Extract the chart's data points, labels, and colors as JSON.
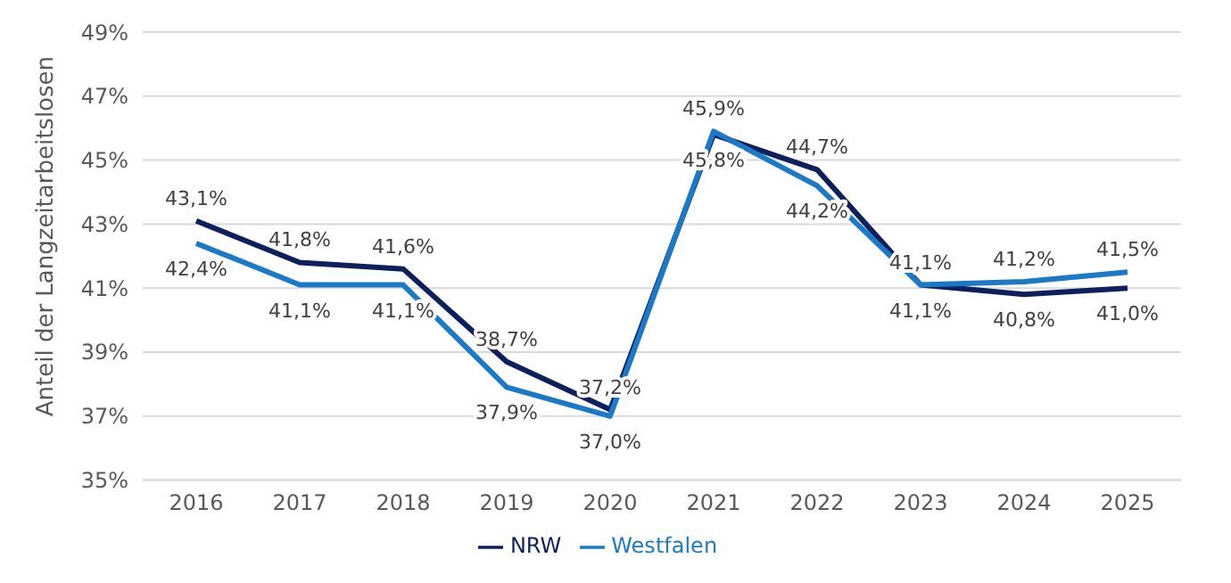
{
  "chart_data": {
    "type": "line",
    "ylabel": "Anteil der Langzeitarbeitslosen",
    "categories": [
      "2016",
      "2017",
      "2018",
      "2019",
      "2020",
      "2021",
      "2022",
      "2023",
      "2024",
      "2025"
    ],
    "series": [
      {
        "name": "NRW",
        "color": "#0d1f5c",
        "values": [
          43.1,
          41.8,
          41.6,
          38.7,
          37.2,
          45.8,
          44.7,
          41.1,
          40.8,
          41.0
        ],
        "value_labels": [
          "43,1%",
          "41,8%",
          "41,6%",
          "38,7%",
          "37,2%",
          "45,8%",
          "44,7%",
          "41,1%",
          "40,8%",
          "41,0%"
        ]
      },
      {
        "name": "Westfalen",
        "color": "#1a7ac8",
        "values": [
          42.4,
          41.1,
          41.1,
          37.9,
          37.0,
          45.9,
          44.2,
          41.1,
          41.2,
          41.5
        ],
        "value_labels": [
          "42,4%",
          "41,1%",
          "41,1%",
          "37,9%",
          "37,0%",
          "45,9%",
          "44,2%",
          "41,1%",
          "41,2%",
          "41,5%"
        ]
      }
    ],
    "ylim": [
      35,
      49
    ],
    "yticks": [
      {
        "value": 35,
        "label": "35%"
      },
      {
        "value": 37,
        "label": "37%"
      },
      {
        "value": 39,
        "label": "39%"
      },
      {
        "value": 41,
        "label": "41%"
      },
      {
        "value": 43,
        "label": "43%"
      },
      {
        "value": 45,
        "label": "45%"
      },
      {
        "value": 47,
        "label": "47%"
      },
      {
        "value": 49,
        "label": "49%"
      }
    ],
    "grid": "y",
    "legend": "bottom",
    "marker": "none",
    "line_style": "solid"
  }
}
